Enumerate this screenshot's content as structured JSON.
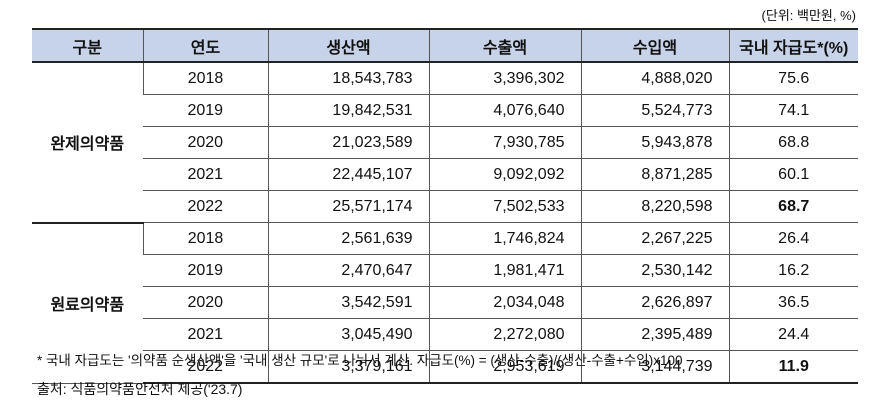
{
  "unit_note": "(단위: 백만원, %)",
  "headers": [
    "구분",
    "연도",
    "생산액",
    "수출액",
    "수입액",
    "국내 자급도*(%)"
  ],
  "groups": [
    {
      "label": "완제의약품",
      "rows": [
        {
          "year": "2018",
          "production": "18,543,783",
          "export": "3,396,302",
          "import": "4,888,020",
          "rate": "75.6"
        },
        {
          "year": "2019",
          "production": "19,842,531",
          "export": "4,076,640",
          "import": "5,524,773",
          "rate": "74.1"
        },
        {
          "year": "2020",
          "production": "21,023,589",
          "export": "7,930,785",
          "import": "5,943,878",
          "rate": "68.8"
        },
        {
          "year": "2021",
          "production": "22,445,107",
          "export": "9,092,092",
          "import": "8,871,285",
          "rate": "60.1"
        },
        {
          "year": "2022",
          "production": "25,571,174",
          "export": "7,502,533",
          "import": "8,220,598",
          "rate": "68.7"
        }
      ]
    },
    {
      "label": "원료의약품",
      "rows": [
        {
          "year": "2018",
          "production": "2,561,639",
          "export": "1,746,824",
          "import": "2,267,225",
          "rate": "26.4"
        },
        {
          "year": "2019",
          "production": "2,470,647",
          "export": "1,981,471",
          "import": "2,530,142",
          "rate": "16.2"
        },
        {
          "year": "2020",
          "production": "3,542,591",
          "export": "2,034,048",
          "import": "2,626,897",
          "rate": "36.5"
        },
        {
          "year": "2021",
          "production": "3,045,490",
          "export": "2,272,080",
          "import": "2,395,489",
          "rate": "24.4"
        },
        {
          "year": "2022",
          "production": "3,379,161",
          "export": "2,953,619",
          "import": "3,144,739",
          "rate": "11.9"
        }
      ]
    }
  ],
  "footnote": "* 국내 자급도는 '의약품 순생산액'을 '국내 생산 규모'로 나눠서 계산. 자급도(%) = (생산-수출)/(생산-수출+수입)x100",
  "source": "출처: 식품의약품안전처 제공('23.7)"
}
